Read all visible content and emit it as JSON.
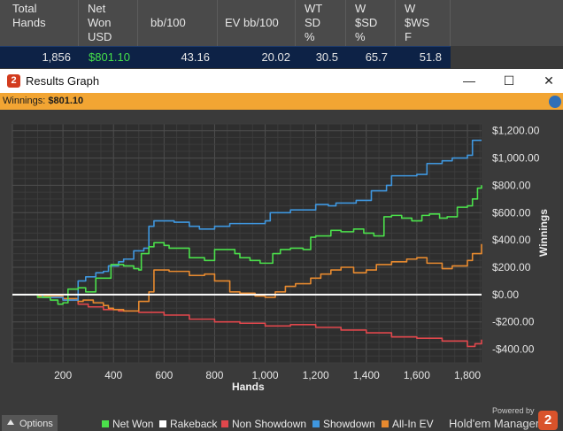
{
  "stats": {
    "columns": [
      "Total\nHands",
      "Net\nWon\nUSD",
      "bb/100",
      "EV bb/100",
      "WT\nSD\n%",
      "W\n$SD\n%",
      "W\n$WS\nF"
    ],
    "row": [
      "1,856",
      "$801.10",
      "43.16",
      "20.02",
      "30.5",
      "65.7",
      "51.8"
    ]
  },
  "window": {
    "title": "Results Graph",
    "icon_glyph": "2",
    "minimize_glyph": "—",
    "maximize_glyph": "☐",
    "close_glyph": "✕"
  },
  "winnings_label": "Winnings:",
  "winnings_value": "$801.10",
  "options_label": "Options",
  "powered_by": "Powered by",
  "brand_name": "Hold'em Manager",
  "brand_glyph": "2",
  "colors": {
    "net_won": "#4be04b",
    "rakeback": "#ffffff",
    "non_showdown": "#e0474c",
    "showdown": "#3f97df",
    "all_in_ev": "#e88a2f",
    "accent": "#f2a533"
  },
  "chart_data": {
    "type": "line",
    "xlabel": "Hands",
    "ylabel": "Winnings",
    "xlim": [
      0,
      1856
    ],
    "ylim": [
      -500,
      1250
    ],
    "x_ticks": [
      200,
      400,
      600,
      800,
      1000,
      1200,
      1400,
      1600,
      1800
    ],
    "x_tick_labels": [
      "200",
      "400",
      "600",
      "800",
      "1,000",
      "1,200",
      "1,400",
      "1,600",
      "1,800"
    ],
    "y_ticks": [
      1200,
      1000,
      800,
      600,
      400,
      200,
      0,
      -200,
      -400
    ],
    "y_tick_labels": [
      "$1,200.00",
      "$1,000.00",
      "$800.00",
      "$600.00",
      "$400.00",
      "$200.00",
      "$0.00",
      "-$200.00",
      "-$400.00"
    ],
    "grid": true,
    "legend_position": "bottom",
    "series": [
      {
        "name": "Net Won",
        "color": "#4be04b",
        "x": [
          0,
          100,
          150,
          180,
          200,
          220,
          260,
          290,
          330,
          360,
          380,
          390,
          440,
          480,
          500,
          510,
          540,
          560,
          600,
          620,
          700,
          760,
          800,
          880,
          900,
          940,
          980,
          1030,
          1060,
          1100,
          1150,
          1180,
          1200,
          1260,
          1300,
          1350,
          1390,
          1430,
          1470,
          1500,
          1540,
          1580,
          1620,
          1650,
          1690,
          1720,
          1760,
          1800,
          1820,
          1840,
          1856
        ],
        "y": [
          0,
          -20,
          -40,
          -70,
          -60,
          40,
          50,
          20,
          120,
          120,
          120,
          220,
          210,
          190,
          180,
          300,
          350,
          380,
          360,
          340,
          270,
          250,
          330,
          300,
          270,
          250,
          230,
          300,
          330,
          340,
          330,
          420,
          430,
          470,
          460,
          480,
          450,
          430,
          570,
          580,
          560,
          540,
          580,
          590,
          560,
          570,
          640,
          650,
          700,
          780,
          801
        ]
      },
      {
        "name": "Rakeback",
        "color": "#ffffff",
        "x": [
          0,
          1856
        ],
        "y": [
          0,
          0
        ]
      },
      {
        "name": "Non Showdown",
        "color": "#e0474c",
        "x": [
          0,
          100,
          200,
          260,
          300,
          360,
          420,
          500,
          600,
          700,
          800,
          900,
          1000,
          1100,
          1200,
          1300,
          1400,
          1500,
          1600,
          1700,
          1800,
          1830,
          1856
        ],
        "y": [
          0,
          -20,
          -40,
          -70,
          -90,
          -110,
          -120,
          -130,
          -150,
          -180,
          -200,
          -210,
          -230,
          -220,
          -240,
          -260,
          -280,
          -310,
          -320,
          -340,
          -380,
          -360,
          -330
        ]
      },
      {
        "name": "Showdown",
        "color": "#3f97df",
        "x": [
          0,
          120,
          200,
          260,
          290,
          330,
          360,
          380,
          420,
          440,
          480,
          520,
          540,
          560,
          600,
          640,
          700,
          740,
          800,
          860,
          1000,
          1020,
          1100,
          1200,
          1250,
          1280,
          1360,
          1420,
          1480,
          1500,
          1560,
          1600,
          1640,
          1700,
          1740,
          1800,
          1820,
          1856
        ],
        "y": [
          0,
          -20,
          -40,
          100,
          130,
          160,
          170,
          210,
          240,
          260,
          320,
          340,
          500,
          540,
          540,
          530,
          500,
          480,
          500,
          520,
          540,
          600,
          620,
          660,
          650,
          670,
          690,
          760,
          800,
          870,
          870,
          880,
          960,
          980,
          1000,
          1020,
          1130,
          1130
        ]
      },
      {
        "name": "All-In EV",
        "color": "#e88a2f",
        "x": [
          0,
          100,
          200,
          260,
          280,
          320,
          360,
          380,
          400,
          440,
          500,
          540,
          560,
          620,
          700,
          760,
          800,
          860,
          900,
          960,
          1000,
          1040,
          1080,
          1120,
          1180,
          1220,
          1260,
          1300,
          1350,
          1400,
          1440,
          1500,
          1560,
          1600,
          1640,
          1700,
          1740,
          1800,
          1820,
          1856
        ],
        "y": [
          0,
          -10,
          -30,
          -50,
          -40,
          -60,
          -80,
          -100,
          -110,
          -120,
          -50,
          20,
          180,
          170,
          140,
          150,
          100,
          20,
          10,
          -10,
          -20,
          20,
          60,
          80,
          120,
          150,
          180,
          200,
          160,
          180,
          220,
          240,
          260,
          270,
          230,
          190,
          210,
          250,
          300,
          370
        ]
      }
    ]
  }
}
